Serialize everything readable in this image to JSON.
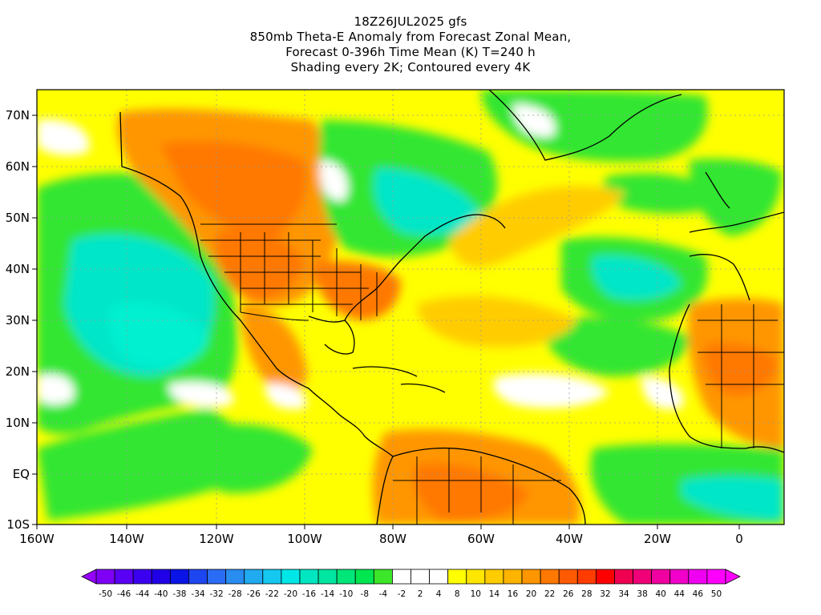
{
  "title": {
    "lines": [
      "18Z26JUL2025 gfs",
      "850mb Theta-E Anomaly from Forecast Zonal Mean,",
      "Forecast 0-396h Time Mean (K) T=240 h",
      "Shading every 2K; Contoured every 4K"
    ]
  },
  "map": {
    "lon_ticks": [
      "160W",
      "140W",
      "120W",
      "100W",
      "80W",
      "60W",
      "40W",
      "20W",
      "0"
    ],
    "lat_ticks": [
      "70N",
      "60N",
      "50N",
      "40N",
      "30N",
      "20N",
      "10N",
      "EQ",
      "10S"
    ],
    "lon_range": [
      -160,
      -10
    ],
    "lat_range": [
      -10,
      75
    ]
  },
  "colorbar": {
    "labels": [
      "-50",
      "-46",
      "-44",
      "-40",
      "-38",
      "-34",
      "-32",
      "-28",
      "-26",
      "-22",
      "-20",
      "-16",
      "-14",
      "-10",
      "-8",
      "-4",
      "-2",
      "2",
      "4",
      "8",
      "10",
      "14",
      "16",
      "20",
      "22",
      "26",
      "28",
      "32",
      "34",
      "38",
      "40",
      "44",
      "46",
      "50"
    ],
    "colors": [
      "#7e00f5",
      "#5a00f5",
      "#3c00f0",
      "#2000e6",
      "#0a14e6",
      "#1e46f0",
      "#2a6cf5",
      "#288cf0",
      "#20aaf0",
      "#14c8f0",
      "#00e6e6",
      "#00e6c0",
      "#00e6a0",
      "#00e678",
      "#00e650",
      "#3ce628",
      "#ffffff",
      "#ffffff",
      "#ffffff",
      "#ffff00",
      "#ffe600",
      "#ffcc00",
      "#ffb400",
      "#ff9600",
      "#ff7800",
      "#ff5a00",
      "#ff3c00",
      "#ff0000",
      "#f00050",
      "#f00078",
      "#f000a0",
      "#f000c8",
      "#f000f0",
      "#ff00ff"
    ],
    "left_arrow_color": "#9600ff",
    "right_arrow_color": "#ff00ff"
  },
  "palette": {
    "ocean_green": "#33e633",
    "cyan": "#00e6c8",
    "yellow": "#ffff00",
    "gold": "#ffcc00",
    "orange": "#ff9600",
    "dark_orange": "#ff7800",
    "white": "#ffffff"
  }
}
